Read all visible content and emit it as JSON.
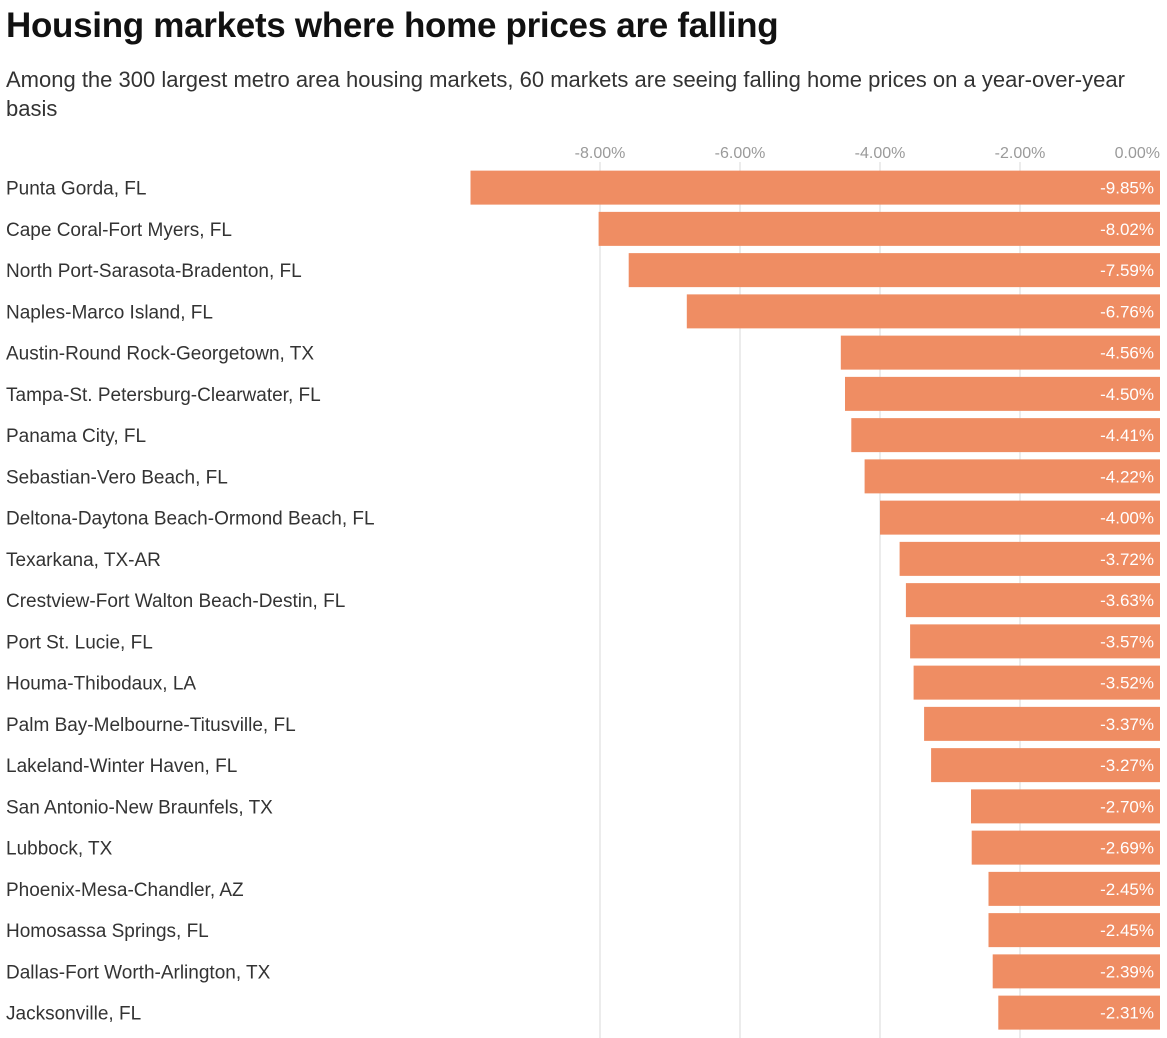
{
  "title": "Housing markets where home prices are falling",
  "subtitle": "Among the 300 largest metro area housing markets, 60 markets are seeing falling home prices on a year-over-year basis",
  "colors": {
    "bar": "#ef8d63",
    "grid": "#d9d9d9",
    "tick_text": "#9a9a9a",
    "label_text": "#333333",
    "value_text": "#ffffff"
  },
  "chart_data": {
    "type": "bar",
    "orientation": "horizontal",
    "xlim": [
      -10,
      0
    ],
    "x_ticks": [
      -8,
      -6,
      -4,
      -2,
      0
    ],
    "x_tick_labels": [
      "-8.00%",
      "-6.00%",
      "-4.00%",
      "-2.00%",
      "0.00%"
    ],
    "grid": true,
    "categories": [
      "Punta Gorda, FL",
      "Cape Coral-Fort Myers, FL",
      "North Port-Sarasota-Bradenton, FL",
      "Naples-Marco Island, FL",
      "Austin-Round Rock-Georgetown, TX",
      "Tampa-St. Petersburg-Clearwater, FL",
      "Panama City, FL",
      "Sebastian-Vero Beach, FL",
      "Deltona-Daytona Beach-Ormond Beach, FL",
      "Texarkana, TX-AR",
      "Crestview-Fort Walton Beach-Destin, FL",
      "Port St. Lucie, FL",
      "Houma-Thibodaux, LA",
      "Palm Bay-Melbourne-Titusville, FL",
      "Lakeland-Winter Haven, FL",
      "San Antonio-New Braunfels, TX",
      "Lubbock, TX",
      "Phoenix-Mesa-Chandler, AZ",
      "Homosassa Springs, FL",
      "Dallas-Fort Worth-Arlington, TX",
      "Jacksonville, FL"
    ],
    "values": [
      -9.85,
      -8.02,
      -7.59,
      -6.76,
      -4.56,
      -4.5,
      -4.41,
      -4.22,
      -4.0,
      -3.72,
      -3.63,
      -3.57,
      -3.52,
      -3.37,
      -3.27,
      -2.7,
      -2.69,
      -2.45,
      -2.45,
      -2.39,
      -2.31
    ],
    "value_labels": [
      "-9.85%",
      "-8.02%",
      "-7.59%",
      "-6.76%",
      "-4.56%",
      "-4.50%",
      "-4.41%",
      "-4.22%",
      "-4.00%",
      "-3.72%",
      "-3.63%",
      "-3.57%",
      "-3.52%",
      "-3.37%",
      "-3.27%",
      "-2.70%",
      "-2.69%",
      "-2.45%",
      "-2.45%",
      "-2.39%",
      "-2.31%"
    ]
  }
}
